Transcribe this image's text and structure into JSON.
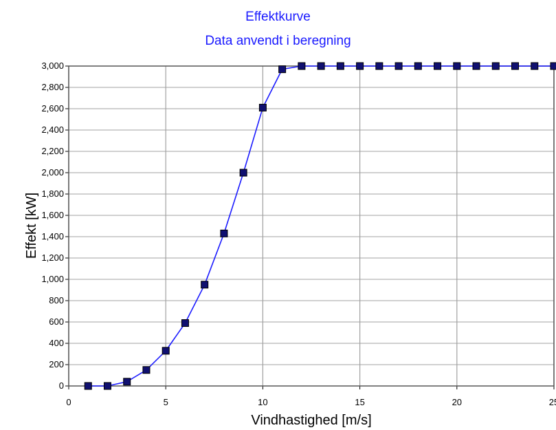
{
  "colors": {
    "title": "#1a1aff",
    "line": "#1a1aff",
    "marker": "#101070",
    "grid": "#a0a0a0",
    "frame": "#555555"
  },
  "chart_data": {
    "type": "line",
    "title": "Effektkurve",
    "subtitle": "Data anvendt i beregning",
    "xlabel": "Vindhastighed [m/s]",
    "ylabel": "Effekt [kW]",
    "xlim": [
      0,
      25
    ],
    "ylim": [
      0,
      3000
    ],
    "x_ticks": [
      0,
      5,
      10,
      15,
      20,
      25
    ],
    "x_tick_labels": [
      "0",
      "5",
      "10",
      "15",
      "20",
      "25"
    ],
    "y_ticks": [
      0,
      200,
      400,
      600,
      800,
      1000,
      1200,
      1400,
      1600,
      1800,
      2000,
      2200,
      2400,
      2600,
      2800,
      3000
    ],
    "y_tick_labels": [
      "0",
      "200",
      "400",
      "600",
      "800",
      "1,000",
      "1,200",
      "1,400",
      "1,600",
      "1,800",
      "2,000",
      "2,200",
      "2,400",
      "2,600",
      "2,800",
      "3,000"
    ],
    "grid": true,
    "series": [
      {
        "x": [
          1,
          2,
          3,
          4,
          5,
          6,
          7,
          8,
          9,
          10,
          11,
          12,
          13,
          14,
          15,
          16,
          17,
          18,
          19,
          20,
          21,
          22,
          23,
          24,
          25
        ],
        "y": [
          0,
          0,
          40,
          150,
          330,
          590,
          950,
          1430,
          2000,
          2610,
          2970,
          3000,
          3000,
          3000,
          3000,
          3000,
          3000,
          3000,
          3000,
          3000,
          3000,
          3000,
          3000,
          3000,
          3000
        ]
      }
    ]
  }
}
